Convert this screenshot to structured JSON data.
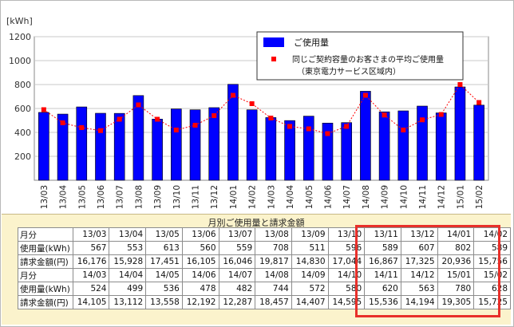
{
  "chart_data": {
    "type": "bar",
    "ylabel": "[kWh]",
    "ylim": [
      0,
      1200
    ],
    "yticks": [
      200,
      400,
      600,
      800,
      1000,
      1200
    ],
    "grid": true,
    "legend_position": "top-right",
    "categories": [
      "13/03",
      "13/04",
      "13/05",
      "13/06",
      "13/07",
      "13/08",
      "13/09",
      "13/10",
      "13/11",
      "13/12",
      "14/01",
      "14/02",
      "14/03",
      "14/04",
      "14/05",
      "14/06",
      "14/07",
      "14/08",
      "14/09",
      "14/10",
      "14/11",
      "14/12",
      "15/01",
      "15/02"
    ],
    "series": [
      {
        "name": "ご使用量",
        "kind": "bar",
        "color": "#0000ff",
        "values": [
          567,
          553,
          613,
          560,
          559,
          708,
          511,
          596,
          589,
          607,
          802,
          589,
          524,
          499,
          536,
          478,
          482,
          744,
          572,
          580,
          620,
          563,
          780,
          628
        ]
      },
      {
        "name": "同じご契約容量のお客さまの平均ご使用量（東京電力サービス区域内）",
        "kind": "line",
        "color": "#ff0000",
        "values": [
          590,
          480,
          440,
          415,
          510,
          630,
          510,
          420,
          460,
          540,
          710,
          640,
          520,
          450,
          430,
          390,
          450,
          710,
          545,
          420,
          505,
          550,
          800,
          650
        ]
      }
    ]
  },
  "legend": {
    "usage_label": "ご使用量",
    "average_label_line1": "同じご契約容量のお客さまの平均ご使用量",
    "average_label_line2": "（東京電力サービス区域内）"
  },
  "table": {
    "title": "月別ご使用量と請求金額",
    "row_labels": {
      "month": "月分",
      "usage": "使用量(kWh)",
      "amount": "請求金額(円)"
    },
    "blocks": [
      {
        "months": [
          "13/03",
          "13/04",
          "13/05",
          "13/06",
          "13/07",
          "13/08",
          "13/09",
          "13/10",
          "13/11",
          "13/12",
          "14/01",
          "14/02"
        ],
        "usage": [
          "567",
          "553",
          "613",
          "560",
          "559",
          "708",
          "511",
          "596",
          "589",
          "607",
          "802",
          "589"
        ],
        "amount": [
          "16,176",
          "15,928",
          "17,451",
          "16,105",
          "16,046",
          "19,817",
          "14,830",
          "17,044",
          "16,867",
          "17,325",
          "20,936",
          "15,756"
        ]
      },
      {
        "months": [
          "14/03",
          "14/04",
          "14/05",
          "14/06",
          "14/07",
          "14/08",
          "14/09",
          "14/10",
          "14/11",
          "14/12",
          "15/01",
          "15/02"
        ],
        "usage": [
          "524",
          "499",
          "536",
          "478",
          "482",
          "744",
          "572",
          "580",
          "620",
          "563",
          "780",
          "628"
        ],
        "amount": [
          "14,105",
          "13,112",
          "13,558",
          "12,192",
          "12,287",
          "18,457",
          "14,407",
          "14,595",
          "15,536",
          "14,194",
          "19,305",
          "15,725"
        ]
      }
    ]
  }
}
